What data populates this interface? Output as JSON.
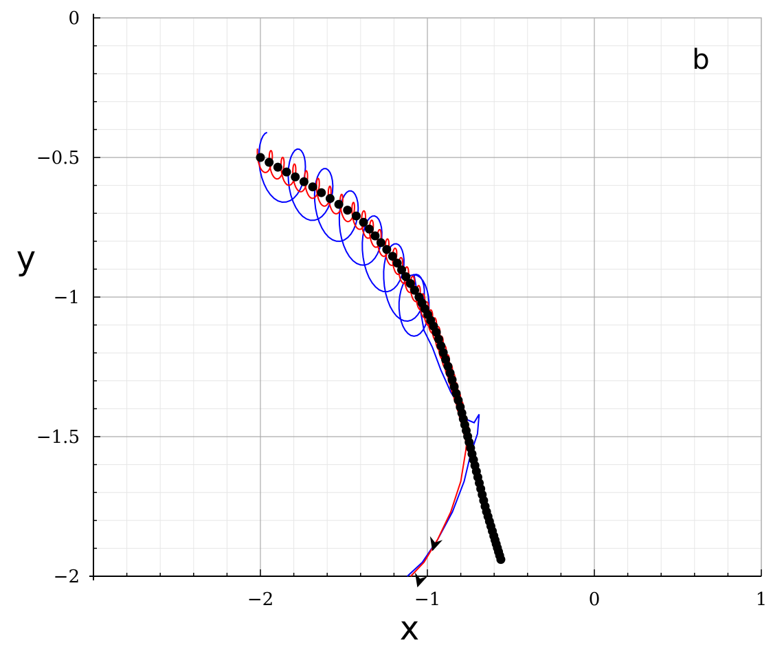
{
  "chart_data": {
    "type": "line",
    "panel_label": "b",
    "xlabel": "x",
    "ylabel": "y",
    "xlim": [
      -3,
      1
    ],
    "ylim": [
      -2,
      0
    ],
    "x_ticks": [
      {
        "value": -2,
        "label": "−2"
      },
      {
        "value": -1,
        "label": "−1"
      },
      {
        "value": 0,
        "label": "0"
      },
      {
        "value": 1,
        "label": "1"
      }
    ],
    "y_ticks": [
      {
        "value": 0,
        "label": "0"
      },
      {
        "value": -0.5,
        "label": "−0.5"
      },
      {
        "value": -1,
        "label": "−1"
      },
      {
        "value": -1.5,
        "label": "−1.5"
      },
      {
        "value": -2,
        "label": "−2"
      }
    ],
    "grid": true,
    "guide_path": [
      [
        -2.0,
        -0.5
      ],
      [
        -1.7,
        -0.6
      ],
      [
        -1.4,
        -0.72
      ],
      [
        -1.2,
        -0.86
      ],
      [
        -1.05,
        -1.0
      ],
      [
        -0.95,
        -1.12
      ],
      [
        -0.87,
        -1.26
      ],
      [
        -0.8,
        -1.4
      ],
      [
        -0.75,
        -1.52
      ],
      [
        -0.7,
        -1.64
      ],
      [
        -0.65,
        -1.76
      ],
      [
        -0.6,
        -1.86
      ],
      [
        -0.56,
        -1.94
      ]
    ],
    "black_dots_count": 70,
    "red_loops": {
      "color": "#ff0000",
      "count": 34,
      "radius": 0.045,
      "backbone_end_index": 8,
      "exit_x": [
        -0.77,
        -0.8,
        -0.86,
        -0.94,
        -1.02,
        -1.1
      ],
      "exit_y": [
        -1.55,
        -1.66,
        -1.77,
        -1.87,
        -1.95,
        -2.0
      ]
    },
    "blue_loops": {
      "color": "#0000ff",
      "centers_x": [
        -1.96,
        -1.78,
        -1.62,
        -1.47,
        -1.33,
        -1.2,
        -1.08
      ],
      "centers_y": [
        -0.52,
        -0.58,
        -0.65,
        -0.73,
        -0.82,
        -0.92,
        -1.03
      ],
      "radius": 0.1,
      "tail_x": [
        -1.02,
        -0.97,
        -0.92,
        -0.86,
        -0.8,
        -0.76,
        -0.72,
        -0.69,
        -0.7,
        -0.74,
        -0.78,
        -0.85,
        -0.94,
        -1.03,
        -1.12
      ],
      "tail_y": [
        -1.12,
        -1.18,
        -1.26,
        -1.34,
        -1.4,
        -1.44,
        -1.45,
        -1.42,
        -1.49,
        -1.56,
        -1.66,
        -1.77,
        -1.87,
        -1.95,
        -2.0
      ]
    },
    "arrows": [
      {
        "x": -0.93,
        "y": -1.83,
        "dx": -0.04,
        "dy": -0.08,
        "color": "#000000"
      },
      {
        "x": -1.02,
        "y": -1.96,
        "dx": -0.04,
        "dy": -0.08,
        "color": "#000000"
      }
    ],
    "colors": {
      "grid_major": "#aaaaaa",
      "grid_minor": "#e6e6e6",
      "axis": "#000000",
      "frame": "#b3b3b3"
    }
  }
}
